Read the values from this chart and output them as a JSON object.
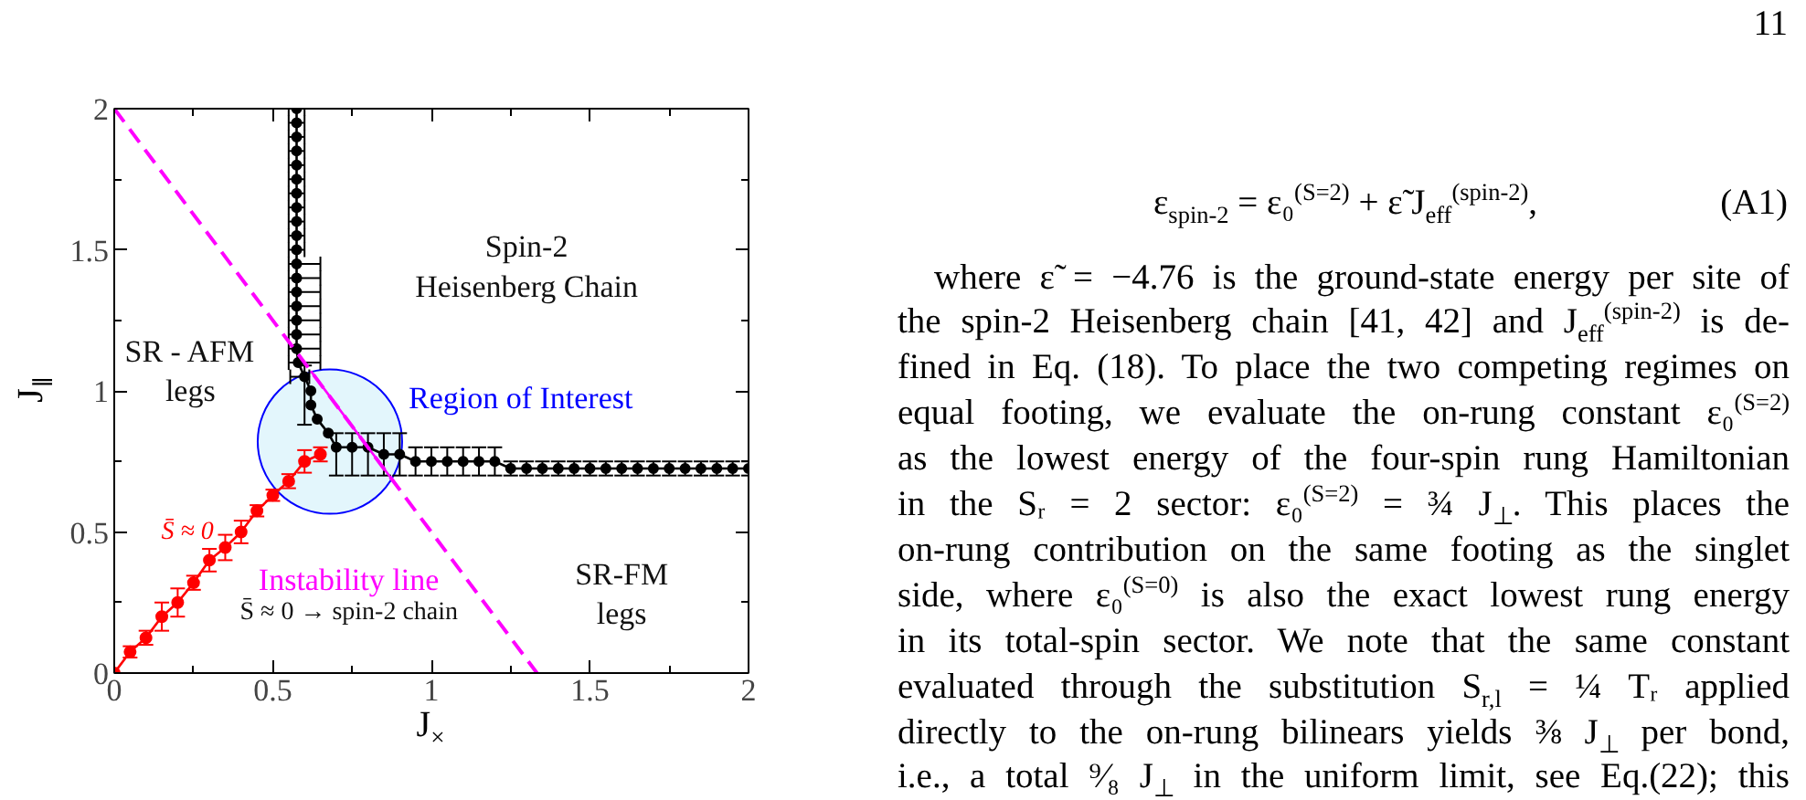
{
  "chart_data": {
    "type": "line",
    "xlim": [
      0,
      2
    ],
    "ylim": [
      0,
      2
    ],
    "xticks": [
      0,
      {
        "value": 0.25,
        "label": null
      },
      0.5,
      {
        "value": 0.75,
        "label": null
      },
      1,
      {
        "value": 1.25,
        "label": null
      },
      1.5,
      {
        "value": 1.75,
        "label": null
      },
      2
    ],
    "yticks": [
      0,
      {
        "value": 0.25,
        "label": null
      },
      0.5,
      {
        "value": 0.75,
        "label": null
      },
      1,
      {
        "value": 1.25,
        "label": null
      },
      1.5,
      {
        "value": 1.75,
        "label": null
      },
      2
    ],
    "xlabel": "J$_{×}$",
    "ylabel": "J$_{∥}$",
    "grid": false,
    "marker": "circle",
    "series": [
      {
        "type": "bubble",
        "name": "Region of Interest",
        "color": "#e3f6fc",
        "x": [
          0.68
        ],
        "values": [
          0.82
        ],
        "sizes": [
          1
        ]
      },
      {
        "color": "#000000",
        "x": [
          0.575,
          0.575,
          0.575,
          0.575,
          0.575,
          0.575,
          0.575,
          0.575,
          0.575,
          0.575,
          0.575,
          0.575,
          0.575,
          0.575,
          0.575,
          0.575,
          0.575,
          0.575,
          0.58,
          0.6,
          0.62,
          0.62,
          0.64,
          0.675,
          0.7,
          0.75,
          0.8,
          0.85,
          0.9,
          0.95,
          1.0,
          1.05,
          1.1,
          1.15,
          1.2,
          1.25,
          1.3,
          1.35,
          1.4,
          1.45,
          1.5,
          1.55,
          1.6,
          1.65,
          1.7,
          1.75,
          1.8,
          1.85,
          1.9,
          1.95,
          2.0
        ],
        "values": [
          2.0,
          1.95,
          1.9,
          1.85,
          1.8,
          1.75,
          1.7,
          1.65,
          1.6,
          1.55,
          1.5,
          1.45,
          1.4,
          1.35,
          1.3,
          1.25,
          1.2,
          1.15,
          1.1,
          1.05,
          1.0,
          0.95,
          0.9,
          0.85,
          0.8,
          0.8,
          0.8,
          0.775,
          0.775,
          0.75,
          0.75,
          0.75,
          0.75,
          0.75,
          0.75,
          0.725,
          0.725,
          0.725,
          0.725,
          0.725,
          0.725,
          0.725,
          0.725,
          0.725,
          0.725,
          0.725,
          0.725,
          0.725,
          0.725,
          0.725,
          0.725
        ],
        "xerrors": [
          0.025,
          0.025,
          0.025,
          0.025,
          0.025,
          0.025,
          0.025,
          0.025,
          0.025,
          0.025,
          0.025,
          [
            0.55,
            0.65
          ],
          [
            0.55,
            0.65
          ],
          [
            0.55,
            0.65
          ],
          [
            0.55,
            0.65
          ],
          [
            0.55,
            0.65
          ],
          [
            0.55,
            0.65
          ],
          [
            0.55,
            0.65
          ],
          [
            0.55,
            0.65
          ],
          [
            0.555,
            0.615
          ],
          null,
          null,
          null,
          null,
          null,
          null,
          null,
          null,
          null,
          null,
          null,
          null,
          null,
          null,
          null,
          null,
          null,
          null,
          null,
          null,
          null,
          null,
          null,
          null,
          null,
          null,
          null,
          null,
          null,
          null,
          null
        ],
        "errors": [
          null,
          null,
          null,
          null,
          null,
          null,
          null,
          null,
          null,
          null,
          null,
          null,
          null,
          null,
          null,
          null,
          null,
          null,
          null,
          [
            0.88,
            1.09
          ],
          null,
          null,
          null,
          null,
          [
            0.7,
            0.85
          ],
          [
            0.7,
            0.85
          ],
          [
            0.7,
            0.85
          ],
          [
            0.7,
            0.85
          ],
          [
            0.7,
            0.85
          ],
          [
            0.7,
            0.8
          ],
          [
            0.7,
            0.8
          ],
          [
            0.7,
            0.8
          ],
          [
            0.7,
            0.8
          ],
          [
            0.7,
            0.8
          ],
          [
            0.7,
            0.8
          ],
          [
            0.7,
            0.75
          ],
          [
            0.7,
            0.75
          ],
          [
            0.7,
            0.75
          ],
          [
            0.7,
            0.75
          ],
          [
            0.7,
            0.75
          ],
          [
            0.7,
            0.75
          ],
          [
            0.7,
            0.75
          ],
          [
            0.7,
            0.75
          ],
          [
            0.7,
            0.75
          ],
          [
            0.7,
            0.75
          ],
          [
            0.7,
            0.75
          ],
          [
            0.7,
            0.75
          ],
          [
            0.7,
            0.75
          ],
          [
            0.7,
            0.75
          ],
          [
            0.7,
            0.75
          ],
          [
            0.7,
            0.75
          ]
        ]
      },
      {
        "name": "S̄ ≈ 0",
        "color": "#ff0000",
        "x": [
          0,
          0.05,
          0.1,
          0.15,
          0.2,
          0.25,
          0.3,
          0.35,
          0.4,
          0.45,
          0.5,
          0.55,
          0.6,
          0.65
        ],
        "values": [
          0,
          0.075,
          0.125,
          0.2,
          0.25,
          0.32,
          0.4,
          0.445,
          0.5,
          0.575,
          0.63,
          0.68,
          0.75,
          0.775
        ],
        "errors": [
          null,
          0.02,
          0.025,
          0.05,
          0.05,
          0.025,
          0.04,
          0.045,
          0.04,
          0.02,
          0.02,
          0.025,
          0.04,
          0.025
        ]
      },
      {
        "name": "Instability line",
        "color": "#ff00ff",
        "marker": "none",
        "line_style": "dashed",
        "x": [
          0,
          1.333
        ],
        "values": [
          2,
          0
        ]
      },
      {
        "color": "#ff00ff",
        "marker": "none",
        "line_style": "solid",
        "x": [
          0.62,
          0.89
        ],
        "values": [
          1.07,
          0.665
        ]
      }
    ],
    "annotations": [
      "Spin-2\nHeisenberg Chain",
      "SR - AFM\nlegs",
      "SR-FM\nlegs",
      "S̄ ≈ 0 → spin-2 chain",
      "11",
      "ε$_{spin-2}$ = ε₀$^{(S=2)}$ + ε̃ J$_{eff}$$^{(spin-2)}$,",
      "(A1)",
      "where ε̃ = −4.76 is the ground-state energy per site of",
      "the spin-2 Heisenberg chain [41, 42] and J$_{eff}$$^{(spin-2)}$ is de-",
      "fined in Eq. (18). To place the two competing regimes on",
      "equal footing, we evaluate the on-rung constant ε₀$^{(S=2)}$",
      "as the lowest energy of the four-spin rung Hamiltonian",
      "in the Sᵣ = 2 sector: ε₀$^{(S=2)}$ = ¾ J$_{⊥}$. This places the",
      "on-rung contribution on the same footing as the singlet",
      "side, where ε₀$^{(S=0)}$ is also the exact lowest rung energy",
      "in its total-spin sector. We note that the same constant",
      "evaluated through the substitution S$_{r,l}$ = ¼ Tᵣ applied",
      "directly to the on-rung bilinears yields ⅜ J$_{⊥}$ per bond,",
      "i.e., a total ⁹⁄₈ J$_{⊥}$ in the uniform limit, see Eq.(22); this"
    ]
  }
}
